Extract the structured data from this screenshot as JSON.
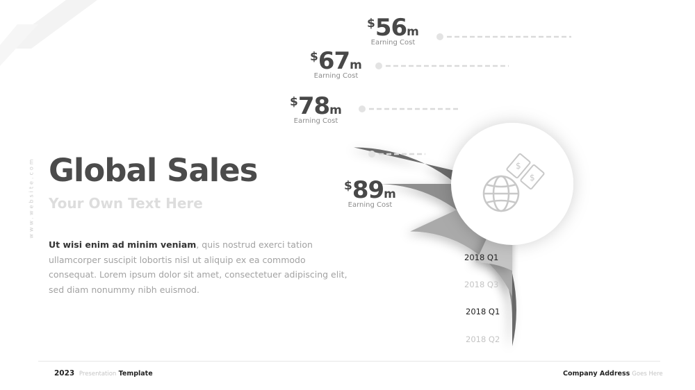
{
  "slide": {
    "side_text": "www.website.com",
    "title": "Global Sales",
    "subtitle": "Your Own Text Here",
    "body_bold": "Ut wisi enim ad minim veniam",
    "body_rest": ", quis nostrud exerci tation ullamcorper suscipit lobortis nisl ut aliquip ex ea commodo consequat. Lorem ipsum dolor sit amet, consectetuer adipiscing elit, sed diam nonummy nibh euismod."
  },
  "amounts": [
    {
      "currency": "$",
      "value": "56",
      "unit": "m",
      "caption": "Earning Cost"
    },
    {
      "currency": "$",
      "value": "67",
      "unit": "m",
      "caption": "Earning Cost"
    },
    {
      "currency": "$",
      "value": "78",
      "unit": "m",
      "caption": "Earning Cost"
    },
    {
      "currency": "$",
      "value": "89",
      "unit": "m",
      "caption": "Earning Cost"
    }
  ],
  "quarters": [
    "2018 Q1",
    "2018 Q3",
    "2018 Q1",
    "2018 Q2"
  ],
  "center_icon": "globe-with-money-icon",
  "colors": {
    "ring_outer": "#6b6b6b",
    "ring_2": "#8e8e8e",
    "ring_3": "#aaaaaa",
    "ring_inner": "#c4c4c4",
    "quarter_dark": "#222222",
    "quarter_light": "#c4c4c4"
  },
  "footer": {
    "year": "2023",
    "presentation": "Presentation",
    "template": "Template",
    "company": "Company Address",
    "goes_here": "Goes Here"
  }
}
